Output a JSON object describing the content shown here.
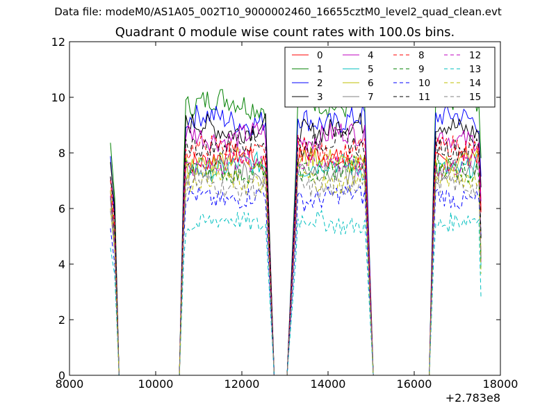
{
  "suptitle": "Data file: modeM0/AS1A05_002T10_9000002460_16655cztM0_level2_quad_clean.evt",
  "chart_data": {
    "type": "line",
    "title": "Quadrant 0 module wise count rates with 100.0s bins.",
    "xlabel": "",
    "ylabel": "",
    "x_offset_label": "+2.783e8",
    "xlim": [
      8000,
      18000
    ],
    "ylim": [
      0,
      12
    ],
    "xticks": [
      8000,
      10000,
      12000,
      14000,
      16000,
      18000
    ],
    "yticks": [
      0,
      2,
      4,
      6,
      8,
      10,
      12
    ],
    "legend_position": "top-right",
    "grid": false,
    "segments": [
      {
        "start": 8950,
        "end": 9050
      },
      {
        "start": 10650,
        "end": 12550
      },
      {
        "start": 13250,
        "end": 14850
      },
      {
        "start": 16450,
        "end": 17550
      }
    ],
    "gaps": [
      [
        9150,
        10550
      ],
      [
        12750,
        13050
      ],
      [
        15050,
        16350
      ]
    ],
    "series": [
      {
        "name": "0",
        "color": "#ff0000",
        "dash": false,
        "level": 7.8
      },
      {
        "name": "1",
        "color": "#008000",
        "dash": false,
        "level": 9.8
      },
      {
        "name": "2",
        "color": "#0000ff",
        "dash": false,
        "level": 9.2
      },
      {
        "name": "3",
        "color": "#000000",
        "dash": false,
        "level": 8.9
      },
      {
        "name": "4",
        "color": "#bf00bf",
        "dash": false,
        "level": 8.6
      },
      {
        "name": "5",
        "color": "#00bfbf",
        "dash": false,
        "level": 7.5
      },
      {
        "name": "6",
        "color": "#bfbf00",
        "dash": false,
        "level": 7.7
      },
      {
        "name": "7",
        "color": "#808080",
        "dash": false,
        "level": 7.3
      },
      {
        "name": "8",
        "color": "#ff0000",
        "dash": true,
        "level": 8.1
      },
      {
        "name": "9",
        "color": "#008000",
        "dash": true,
        "level": 7.4
      },
      {
        "name": "10",
        "color": "#0000ff",
        "dash": true,
        "level": 6.4
      },
      {
        "name": "11",
        "color": "#000000",
        "dash": true,
        "level": 8.3
      },
      {
        "name": "12",
        "color": "#bf00bf",
        "dash": true,
        "level": 7.6
      },
      {
        "name": "13",
        "color": "#00bfbf",
        "dash": true,
        "level": 5.5
      },
      {
        "name": "14",
        "color": "#bfbf00",
        "dash": true,
        "level": 7.0
      },
      {
        "name": "15",
        "color": "#808080",
        "dash": true,
        "level": 6.8
      }
    ]
  }
}
